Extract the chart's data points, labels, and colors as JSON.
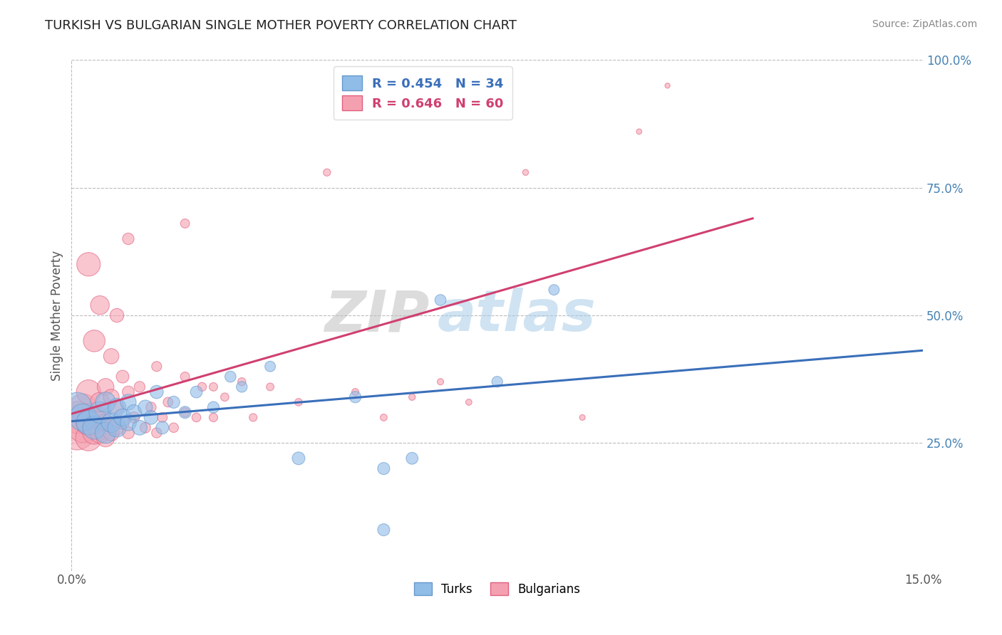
{
  "title": "TURKISH VS BULGARIAN SINGLE MOTHER POVERTY CORRELATION CHART",
  "source": "Source: ZipAtlas.com",
  "ylabel": "Single Mother Poverty",
  "xlim": [
    0.0,
    0.15
  ],
  "ylim": [
    0.0,
    1.0
  ],
  "xtick_labels": [
    "0.0%",
    "15.0%"
  ],
  "ytick_positions": [
    0.25,
    0.5,
    0.75,
    1.0
  ],
  "ytick_labels": [
    "25.0%",
    "50.0%",
    "75.0%",
    "100.0%"
  ],
  "turk_color": "#90bce8",
  "bulg_color": "#f5a0b0",
  "turk_edge_color": "#6699cc",
  "bulg_edge_color": "#e06080",
  "turk_line_color": "#3a6fba",
  "bulg_line_color": "#d04070",
  "legend_turk": "R = 0.454   N = 34",
  "legend_bulg": "R = 0.646   N = 60",
  "watermark_zip": "ZIP",
  "watermark_atlas": "atlas",
  "background_color": "#ffffff",
  "grid_color": "#bbbbbb",
  "turk_data": [
    [
      0.001,
      0.32
    ],
    [
      0.002,
      0.3
    ],
    [
      0.003,
      0.29
    ],
    [
      0.004,
      0.28
    ],
    [
      0.005,
      0.31
    ],
    [
      0.006,
      0.27
    ],
    [
      0.006,
      0.33
    ],
    [
      0.007,
      0.29
    ],
    [
      0.008,
      0.28
    ],
    [
      0.008,
      0.32
    ],
    [
      0.009,
      0.3
    ],
    [
      0.01,
      0.29
    ],
    [
      0.01,
      0.33
    ],
    [
      0.011,
      0.31
    ],
    [
      0.012,
      0.28
    ],
    [
      0.013,
      0.32
    ],
    [
      0.014,
      0.3
    ],
    [
      0.015,
      0.35
    ],
    [
      0.016,
      0.28
    ],
    [
      0.018,
      0.33
    ],
    [
      0.02,
      0.31
    ],
    [
      0.022,
      0.35
    ],
    [
      0.025,
      0.32
    ],
    [
      0.028,
      0.38
    ],
    [
      0.03,
      0.36
    ],
    [
      0.035,
      0.4
    ],
    [
      0.04,
      0.22
    ],
    [
      0.05,
      0.34
    ],
    [
      0.055,
      0.2
    ],
    [
      0.06,
      0.22
    ],
    [
      0.065,
      0.53
    ],
    [
      0.075,
      0.37
    ],
    [
      0.085,
      0.55
    ],
    [
      0.055,
      0.08
    ]
  ],
  "bulg_data": [
    [
      0.001,
      0.27
    ],
    [
      0.001,
      0.3
    ],
    [
      0.002,
      0.28
    ],
    [
      0.002,
      0.32
    ],
    [
      0.003,
      0.26
    ],
    [
      0.003,
      0.29
    ],
    [
      0.003,
      0.35
    ],
    [
      0.003,
      0.6
    ],
    [
      0.004,
      0.27
    ],
    [
      0.004,
      0.3
    ],
    [
      0.004,
      0.45
    ],
    [
      0.005,
      0.27
    ],
    [
      0.005,
      0.3
    ],
    [
      0.005,
      0.33
    ],
    [
      0.005,
      0.52
    ],
    [
      0.006,
      0.26
    ],
    [
      0.006,
      0.29
    ],
    [
      0.006,
      0.36
    ],
    [
      0.007,
      0.27
    ],
    [
      0.007,
      0.34
    ],
    [
      0.007,
      0.42
    ],
    [
      0.008,
      0.28
    ],
    [
      0.008,
      0.32
    ],
    [
      0.008,
      0.5
    ],
    [
      0.009,
      0.29
    ],
    [
      0.009,
      0.38
    ],
    [
      0.01,
      0.27
    ],
    [
      0.01,
      0.35
    ],
    [
      0.01,
      0.65
    ],
    [
      0.011,
      0.3
    ],
    [
      0.012,
      0.36
    ],
    [
      0.013,
      0.28
    ],
    [
      0.014,
      0.32
    ],
    [
      0.015,
      0.27
    ],
    [
      0.015,
      0.4
    ],
    [
      0.016,
      0.3
    ],
    [
      0.017,
      0.33
    ],
    [
      0.018,
      0.28
    ],
    [
      0.02,
      0.31
    ],
    [
      0.02,
      0.38
    ],
    [
      0.02,
      0.68
    ],
    [
      0.022,
      0.3
    ],
    [
      0.023,
      0.36
    ],
    [
      0.025,
      0.3
    ],
    [
      0.025,
      0.36
    ],
    [
      0.027,
      0.34
    ],
    [
      0.03,
      0.37
    ],
    [
      0.032,
      0.3
    ],
    [
      0.035,
      0.36
    ],
    [
      0.04,
      0.33
    ],
    [
      0.045,
      0.78
    ],
    [
      0.05,
      0.35
    ],
    [
      0.055,
      0.3
    ],
    [
      0.06,
      0.34
    ],
    [
      0.065,
      0.37
    ],
    [
      0.07,
      0.33
    ],
    [
      0.08,
      0.78
    ],
    [
      0.09,
      0.3
    ],
    [
      0.1,
      0.86
    ],
    [
      0.105,
      0.95
    ]
  ],
  "turk_sizes": [
    300,
    250,
    200,
    180,
    160,
    150,
    140,
    130,
    120,
    110,
    100,
    90,
    85,
    80,
    75,
    70,
    65,
    60,
    55,
    50,
    50,
    48,
    45,
    42,
    40,
    38,
    55,
    45,
    50,
    48,
    42,
    40,
    38,
    50
  ],
  "bulg_sizes": [
    400,
    350,
    300,
    250,
    230,
    220,
    200,
    190,
    180,
    170,
    160,
    150,
    140,
    130,
    120,
    110,
    100,
    95,
    90,
    85,
    80,
    75,
    70,
    65,
    60,
    55,
    50,
    48,
    45,
    42,
    40,
    38,
    36,
    35,
    34,
    33,
    32,
    31,
    30,
    29,
    28,
    27,
    26,
    25,
    24,
    23,
    22,
    21,
    20,
    19,
    18,
    17,
    16,
    15,
    14,
    13,
    12,
    11,
    10,
    9
  ]
}
